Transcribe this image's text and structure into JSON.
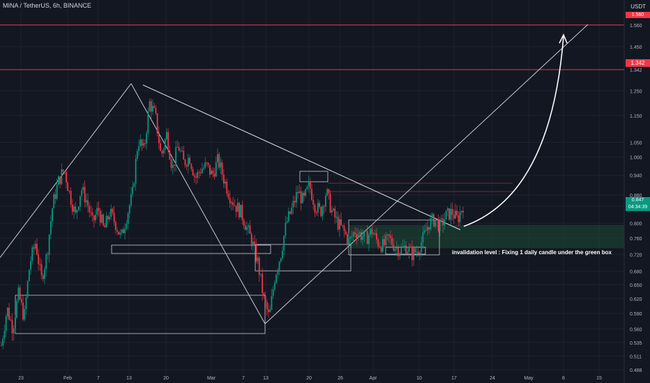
{
  "header": {
    "title": "MINA / TetherUS, 6h, BINANCE",
    "currency": "USDT"
  },
  "price_badges": {
    "top_level": "1.560",
    "level": "1.342",
    "current": "0.847",
    "countdown": "04:34:39"
  },
  "annotation": "invalidation level : Fixing 1 daily candle under the green box",
  "colors": {
    "background": "#131722",
    "up": "#089981",
    "down": "#f23645",
    "level_line": "#f23645",
    "zone": "#1e4a34"
  },
  "chart_data": {
    "type": "candlestick",
    "title": "MINA / TetherUS, 6h, BINANCE",
    "y_scale": "log",
    "ylim": [
      0.48,
      1.65
    ],
    "y_ticks": [
      "1.560",
      "1.450",
      "1.342",
      "1.250",
      "1.150",
      "1.050",
      "1.000",
      "0.940",
      "0.880",
      "0.847",
      "0.800",
      "0.760",
      "0.720",
      "0.680",
      "0.650",
      "0.620",
      "0.590",
      "0.560",
      "0.535",
      "0.511",
      "0.488"
    ],
    "x_ticks": [
      "23",
      "Feb",
      "7",
      "13",
      "20",
      "Mar",
      "7",
      "13",
      "20",
      "26",
      "Apr",
      "10",
      "17",
      "24",
      "May",
      "8",
      "15"
    ],
    "ohlc_path": [
      0.53,
      0.6,
      0.56,
      0.63,
      0.58,
      0.7,
      0.75,
      0.66,
      0.72,
      0.85,
      0.92,
      0.96,
      0.88,
      0.82,
      0.9,
      0.86,
      0.8,
      0.84,
      0.78,
      0.83,
      0.8,
      0.76,
      0.82,
      0.88,
      1.06,
      1.02,
      1.2,
      1.15,
      1.0,
      1.08,
      0.96,
      1.04,
      0.98,
      1.0,
      0.93,
      0.96,
      0.97,
      0.94,
      0.99,
      0.93,
      0.88,
      0.85,
      0.83,
      0.79,
      0.75,
      0.7,
      0.62,
      0.58,
      0.67,
      0.72,
      0.8,
      0.84,
      0.89,
      0.86,
      0.91,
      0.85,
      0.83,
      0.89,
      0.83,
      0.8,
      0.78,
      0.75,
      0.78,
      0.77,
      0.76,
      0.78,
      0.75,
      0.74,
      0.76,
      0.74,
      0.73,
      0.74,
      0.72,
      0.73,
      0.76,
      0.8,
      0.81,
      0.79,
      0.82,
      0.83,
      0.81,
      0.85
    ],
    "horizontal_levels": [
      1.56,
      1.342
    ],
    "zone": {
      "from": 0.735,
      "to": 0.795
    },
    "annotations": [
      "invalidation level : Fixing 1 daily candle under the green box"
    ]
  }
}
